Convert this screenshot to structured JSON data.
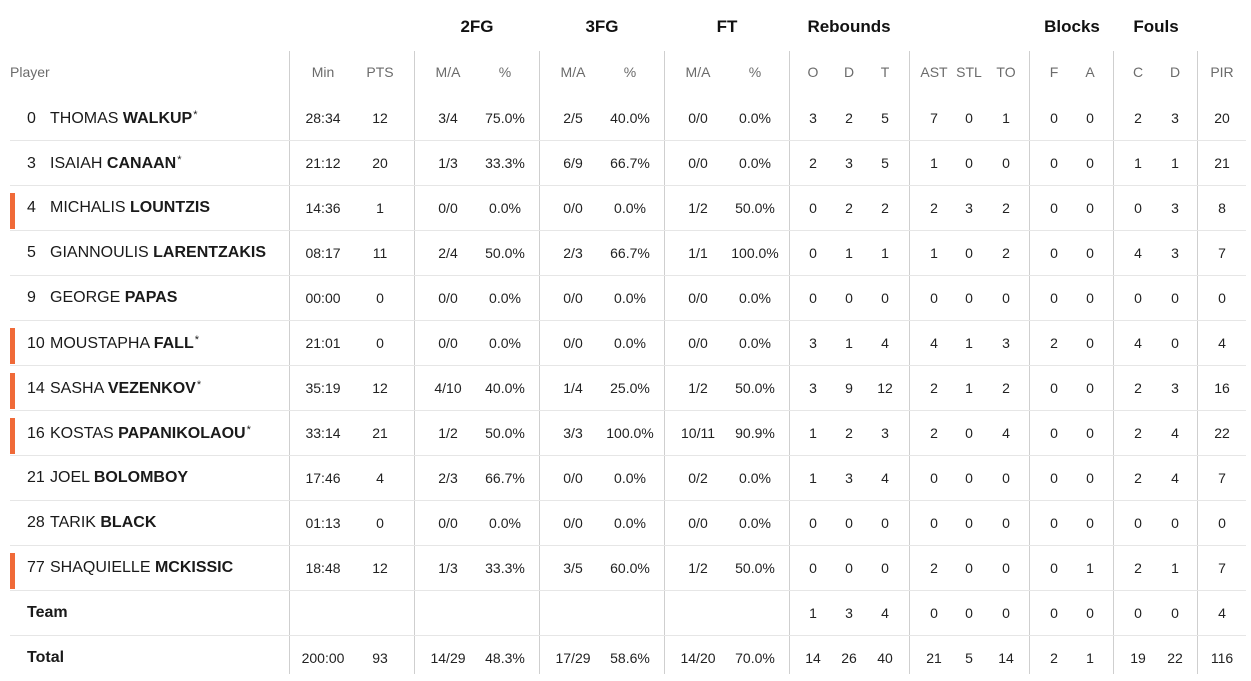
{
  "group_headers": {
    "fg2": "2FG",
    "fg3": "3FG",
    "ft": "FT",
    "rebounds": "Rebounds",
    "blocks": "Blocks",
    "fouls": "Fouls"
  },
  "columns": [
    "Player",
    "Min",
    "PTS",
    "M/A",
    "%",
    "M/A",
    "%",
    "M/A",
    "%",
    "O",
    "D",
    "T",
    "AST",
    "STL",
    "TO",
    "F",
    "A",
    "C",
    "D",
    "PIR"
  ],
  "players": [
    {
      "num": "0",
      "first": "THOMAS",
      "last": "WALKUP",
      "star": "*",
      "marked": false,
      "stats": [
        "28:34",
        "12",
        "3/4",
        "75.0%",
        "2/5",
        "40.0%",
        "0/0",
        "0.0%",
        "3",
        "2",
        "5",
        "7",
        "0",
        "1",
        "0",
        "0",
        "2",
        "3",
        "20"
      ]
    },
    {
      "num": "3",
      "first": "ISAIAH",
      "last": "CANAAN",
      "star": "*",
      "marked": false,
      "stats": [
        "21:12",
        "20",
        "1/3",
        "33.3%",
        "6/9",
        "66.7%",
        "0/0",
        "0.0%",
        "2",
        "3",
        "5",
        "1",
        "0",
        "0",
        "0",
        "0",
        "1",
        "1",
        "21"
      ]
    },
    {
      "num": "4",
      "first": "MICHALIS",
      "last": "LOUNTZIS",
      "star": "",
      "marked": true,
      "stats": [
        "14:36",
        "1",
        "0/0",
        "0.0%",
        "0/0",
        "0.0%",
        "1/2",
        "50.0%",
        "0",
        "2",
        "2",
        "2",
        "3",
        "2",
        "0",
        "0",
        "0",
        "3",
        "8"
      ]
    },
    {
      "num": "5",
      "first": "GIANNOULIS",
      "last": "LARENTZAKIS",
      "star": "",
      "marked": false,
      "stats": [
        "08:17",
        "11",
        "2/4",
        "50.0%",
        "2/3",
        "66.7%",
        "1/1",
        "100.0%",
        "0",
        "1",
        "1",
        "1",
        "0",
        "2",
        "0",
        "0",
        "4",
        "3",
        "7"
      ]
    },
    {
      "num": "9",
      "first": "GEORGE",
      "last": "PAPAS",
      "star": "",
      "marked": false,
      "stats": [
        "00:00",
        "0",
        "0/0",
        "0.0%",
        "0/0",
        "0.0%",
        "0/0",
        "0.0%",
        "0",
        "0",
        "0",
        "0",
        "0",
        "0",
        "0",
        "0",
        "0",
        "0",
        "0"
      ]
    },
    {
      "num": "10",
      "first": "MOUSTAPHA",
      "last": "FALL",
      "star": "*",
      "marked": true,
      "stats": [
        "21:01",
        "0",
        "0/0",
        "0.0%",
        "0/0",
        "0.0%",
        "0/0",
        "0.0%",
        "3",
        "1",
        "4",
        "4",
        "1",
        "3",
        "2",
        "0",
        "4",
        "0",
        "4"
      ]
    },
    {
      "num": "14",
      "first": "SASHA",
      "last": "VEZENKOV",
      "star": "*",
      "marked": true,
      "stats": [
        "35:19",
        "12",
        "4/10",
        "40.0%",
        "1/4",
        "25.0%",
        "1/2",
        "50.0%",
        "3",
        "9",
        "12",
        "2",
        "1",
        "2",
        "0",
        "0",
        "2",
        "3",
        "16"
      ]
    },
    {
      "num": "16",
      "first": "KOSTAS",
      "last": "PAPANIKOLAOU",
      "star": "*",
      "marked": true,
      "stats": [
        "33:14",
        "21",
        "1/2",
        "50.0%",
        "3/3",
        "100.0%",
        "10/11",
        "90.9%",
        "1",
        "2",
        "3",
        "2",
        "0",
        "4",
        "0",
        "0",
        "2",
        "4",
        "22"
      ]
    },
    {
      "num": "21",
      "first": "JOEL",
      "last": "BOLOMBOY",
      "star": "",
      "marked": false,
      "stats": [
        "17:46",
        "4",
        "2/3",
        "66.7%",
        "0/0",
        "0.0%",
        "0/2",
        "0.0%",
        "1",
        "3",
        "4",
        "0",
        "0",
        "0",
        "0",
        "0",
        "2",
        "4",
        "7"
      ]
    },
    {
      "num": "28",
      "first": "TARIK",
      "last": "BLACK",
      "star": "",
      "marked": false,
      "stats": [
        "01:13",
        "0",
        "0/0",
        "0.0%",
        "0/0",
        "0.0%",
        "0/0",
        "0.0%",
        "0",
        "0",
        "0",
        "0",
        "0",
        "0",
        "0",
        "0",
        "0",
        "0",
        "0"
      ]
    },
    {
      "num": "77",
      "first": "SHAQUIELLE",
      "last": "MCKISSIC",
      "star": "",
      "marked": true,
      "stats": [
        "18:48",
        "12",
        "1/3",
        "33.3%",
        "3/5",
        "60.0%",
        "1/2",
        "50.0%",
        "0",
        "0",
        "0",
        "2",
        "0",
        "0",
        "0",
        "1",
        "2",
        "1",
        "7"
      ]
    }
  ],
  "team": {
    "label": "Team",
    "stats": [
      "",
      "",
      "",
      "",
      "",
      "",
      "",
      "",
      "1",
      "3",
      "4",
      "0",
      "0",
      "0",
      "0",
      "0",
      "0",
      "0",
      "4"
    ]
  },
  "total": {
    "label": "Total",
    "stats": [
      "200:00",
      "93",
      "14/29",
      "48.3%",
      "17/29",
      "58.6%",
      "14/20",
      "70.0%",
      "14",
      "26",
      "40",
      "21",
      "5",
      "14",
      "2",
      "1",
      "19",
      "22",
      "116"
    ]
  },
  "colors": {
    "starter_marker": "#f06a38",
    "divider": "#cfcfcf",
    "row_line": "#e6e6e6"
  }
}
